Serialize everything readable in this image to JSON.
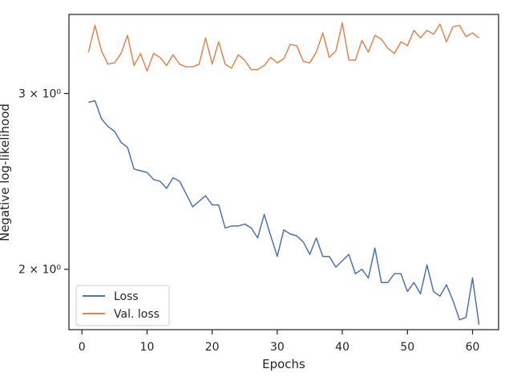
{
  "chart_data": {
    "type": "line",
    "xlabel": "Epochs",
    "ylabel": "Negative log-likelihood",
    "xlim": [
      -2,
      64
    ],
    "ylim": [
      1.74,
      3.6
    ],
    "yscale": "log",
    "grid": false,
    "legend_position": "lower-left",
    "x_ticks": [
      0,
      10,
      20,
      30,
      40,
      50,
      60
    ],
    "x_tick_labels": [
      "0",
      "10",
      "20",
      "30",
      "40",
      "50",
      "60"
    ],
    "y_ticks": [
      2,
      3
    ],
    "y_tick_labels": [
      "2 × 10⁰",
      "3 × 10⁰"
    ],
    "x": [
      1,
      2,
      3,
      4,
      5,
      6,
      7,
      8,
      9,
      10,
      11,
      12,
      13,
      14,
      15,
      16,
      17,
      18,
      19,
      20,
      21,
      22,
      23,
      24,
      25,
      26,
      27,
      28,
      29,
      30,
      31,
      32,
      33,
      34,
      35,
      36,
      37,
      38,
      39,
      40,
      41,
      42,
      43,
      44,
      45,
      46,
      47,
      48,
      49,
      50,
      51,
      52,
      53,
      54,
      55,
      56,
      57,
      58,
      59,
      60,
      61
    ],
    "series": [
      {
        "name": "Loss",
        "color": "#4c72b0",
        "values": [
          2.94,
          2.95,
          2.83,
          2.78,
          2.75,
          2.68,
          2.65,
          2.52,
          2.51,
          2.5,
          2.46,
          2.45,
          2.41,
          2.47,
          2.45,
          2.38,
          2.31,
          2.34,
          2.37,
          2.32,
          2.32,
          2.2,
          2.21,
          2.21,
          2.22,
          2.2,
          2.15,
          2.27,
          2.16,
          2.06,
          2.19,
          2.17,
          2.16,
          2.13,
          2.07,
          2.15,
          2.06,
          2.06,
          2.01,
          2.04,
          2.07,
          1.98,
          2.0,
          1.96,
          2.1,
          1.94,
          1.94,
          1.98,
          1.98,
          1.9,
          1.94,
          1.89,
          2.02,
          1.9,
          1.88,
          1.93,
          1.86,
          1.78,
          1.79,
          1.96,
          1.76
        ]
      },
      {
        "name": "Val. loss",
        "color": "#dd8452",
        "values": [
          3.3,
          3.51,
          3.31,
          3.21,
          3.22,
          3.29,
          3.43,
          3.2,
          3.29,
          3.16,
          3.29,
          3.26,
          3.2,
          3.28,
          3.21,
          3.19,
          3.19,
          3.21,
          3.41,
          3.21,
          3.38,
          3.21,
          3.18,
          3.28,
          3.24,
          3.17,
          3.17,
          3.2,
          3.26,
          3.22,
          3.25,
          3.36,
          3.35,
          3.23,
          3.22,
          3.3,
          3.45,
          3.26,
          3.31,
          3.53,
          3.24,
          3.24,
          3.39,
          3.3,
          3.43,
          3.4,
          3.33,
          3.29,
          3.38,
          3.35,
          3.47,
          3.41,
          3.47,
          3.44,
          3.52,
          3.38,
          3.5,
          3.51,
          3.42,
          3.45,
          3.41
        ]
      }
    ]
  }
}
